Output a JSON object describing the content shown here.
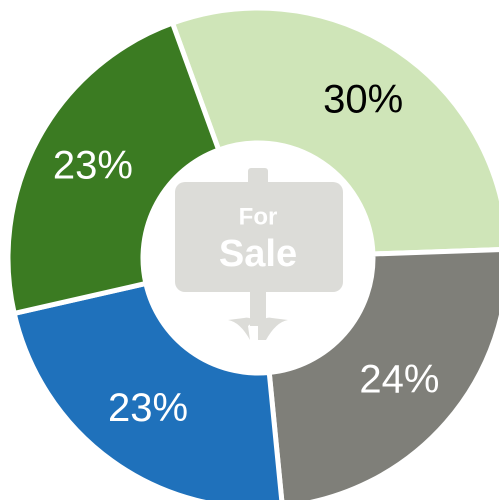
{
  "chart_data": {
    "type": "donut",
    "categories": [
      null,
      null,
      null,
      null
    ],
    "values": [
      30,
      24,
      23,
      23
    ],
    "value_labels": [
      "30%",
      "24%",
      "23%",
      "23%"
    ],
    "colors": [
      "#cfe5b8",
      "#7f7f79",
      "#1f71bb",
      "#3b7b22"
    ],
    "label_colors": [
      "#000000",
      "#ffffff",
      "#ffffff",
      "#ffffff"
    ],
    "annotations": [
      "For",
      "Sale"
    ]
  }
}
